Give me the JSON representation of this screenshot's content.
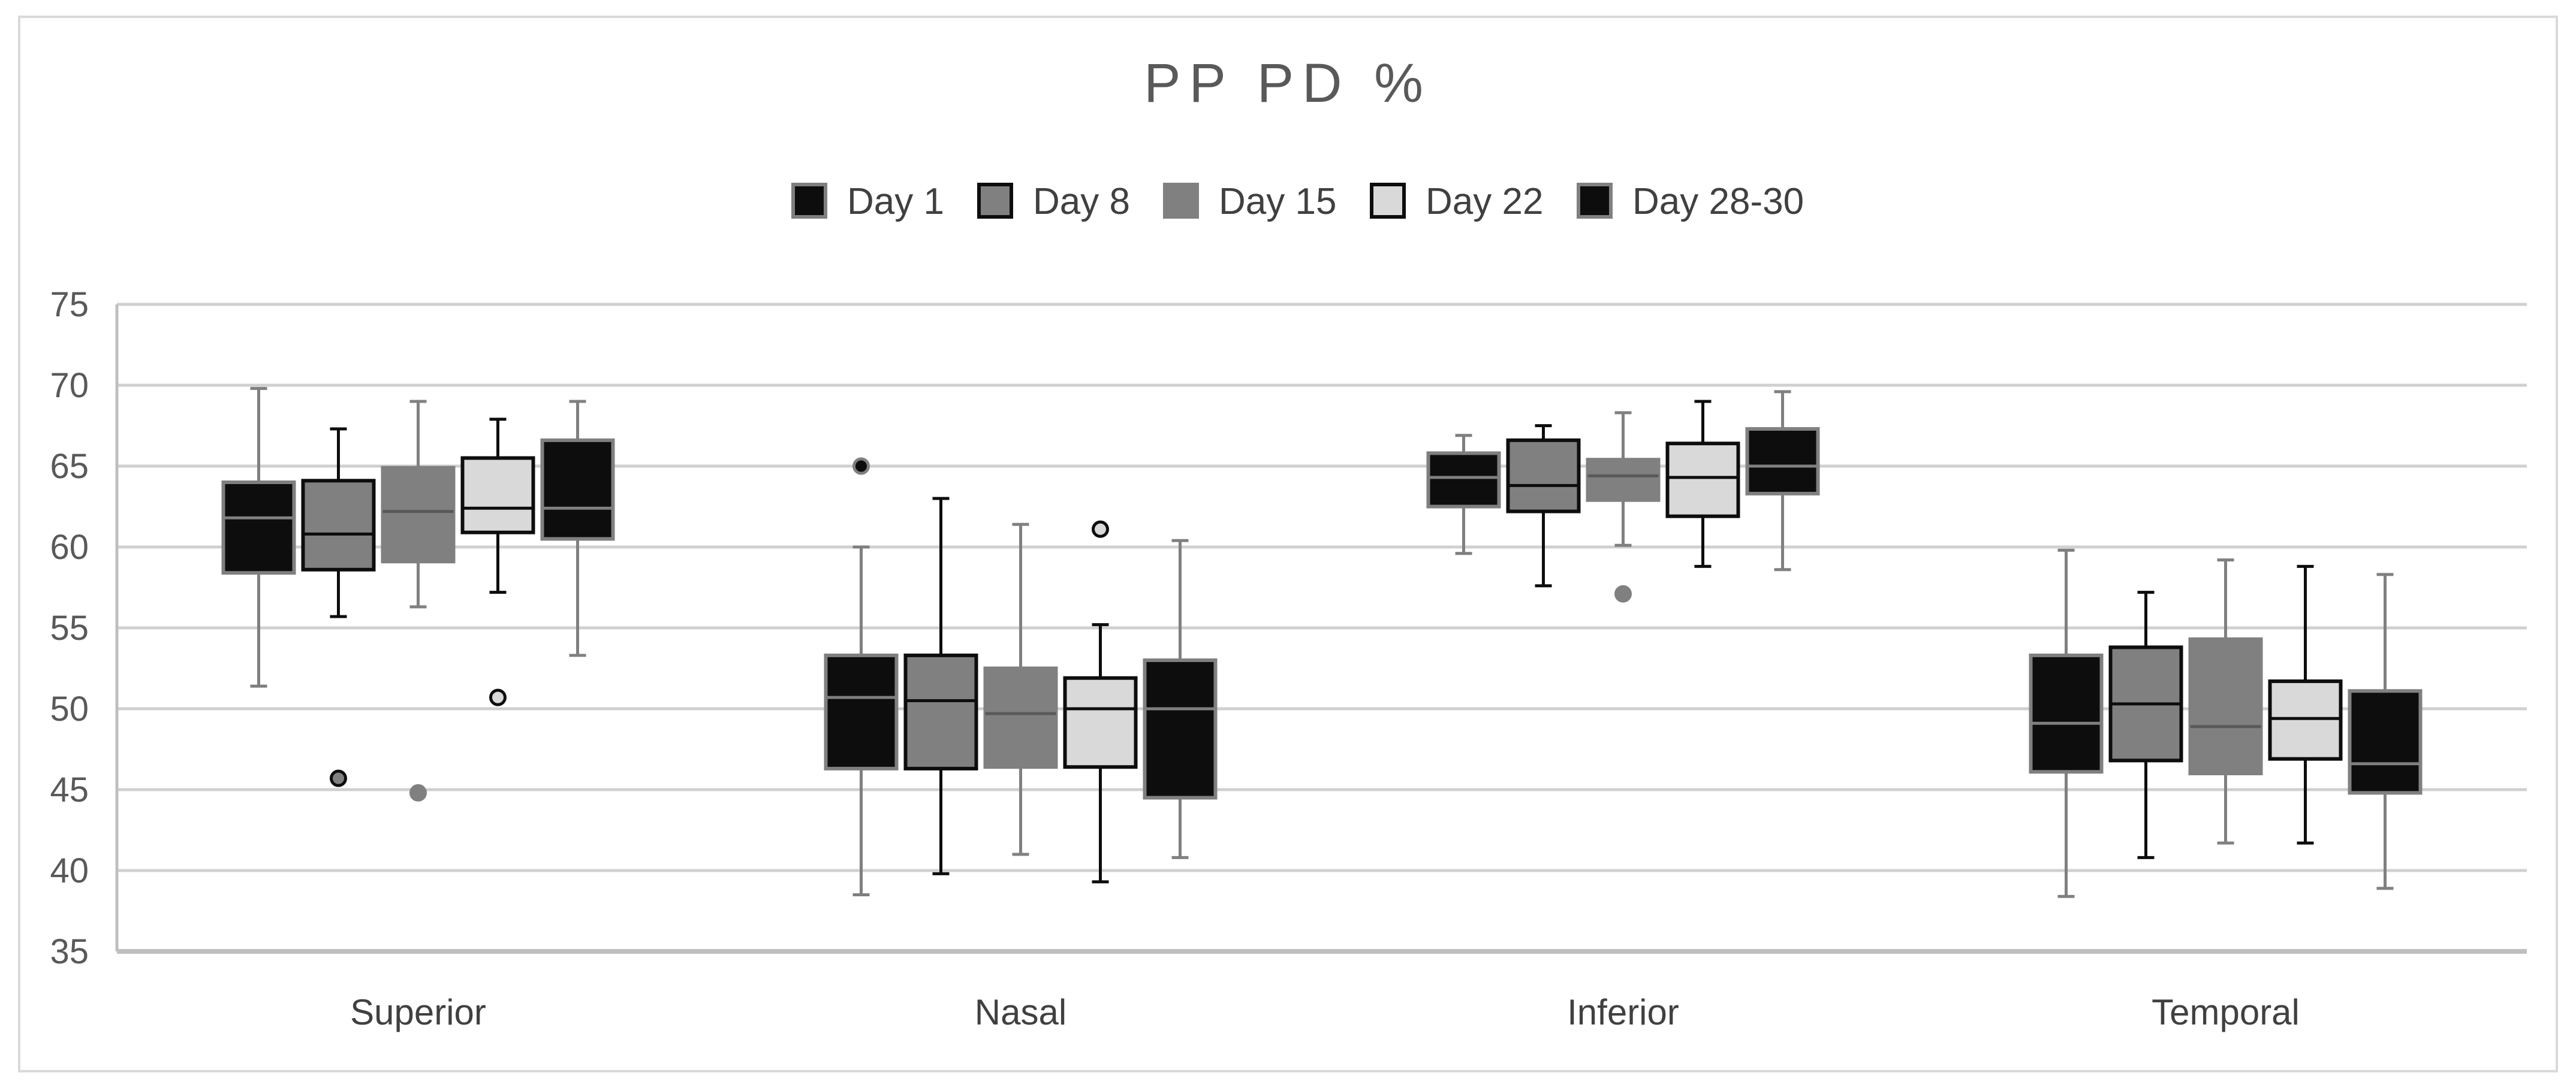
{
  "chart_data": {
    "type": "box",
    "title": "PP PD %",
    "xlabel": "",
    "ylabel": "",
    "ylim": [
      35,
      75
    ],
    "yticks": [
      35,
      40,
      45,
      50,
      55,
      60,
      65,
      70,
      75
    ],
    "grid": true,
    "legend_position": "top-center",
    "categories": [
      "Superior",
      "Nasal",
      "Inferior",
      "Temporal"
    ],
    "series": [
      {
        "name": "Day 1",
        "fill": "#0d0d0d",
        "stroke": "#7f7f7f",
        "median_color": "#7f7f7f",
        "boxes": [
          {
            "min": 51.4,
            "q1": 58.4,
            "median": 61.8,
            "q3": 64.0,
            "max": 69.8,
            "outliers": []
          },
          {
            "min": 38.5,
            "q1": 46.3,
            "median": 50.7,
            "q3": 53.3,
            "max": 60.0,
            "outliers": [
              65.0
            ]
          },
          {
            "min": 59.6,
            "q1": 62.5,
            "median": 64.3,
            "q3": 65.8,
            "max": 66.9,
            "outliers": []
          },
          {
            "min": 38.4,
            "q1": 46.1,
            "median": 49.1,
            "q3": 53.3,
            "max": 59.8,
            "outliers": []
          }
        ]
      },
      {
        "name": "Day 8",
        "fill": "#808080",
        "stroke": "#0d0d0d",
        "median_color": "#0d0d0d",
        "boxes": [
          {
            "min": 55.7,
            "q1": 58.6,
            "median": 60.8,
            "q3": 64.1,
            "max": 67.3,
            "outliers": [
              45.7
            ]
          },
          {
            "min": 39.8,
            "q1": 46.3,
            "median": 50.5,
            "q3": 53.3,
            "max": 63.0,
            "outliers": []
          },
          {
            "min": 57.6,
            "q1": 62.2,
            "median": 63.8,
            "q3": 66.6,
            "max": 67.5,
            "outliers": []
          },
          {
            "min": 40.8,
            "q1": 46.8,
            "median": 50.3,
            "q3": 53.8,
            "max": 57.2,
            "outliers": []
          }
        ]
      },
      {
        "name": "Day 15",
        "fill": "#808080",
        "stroke": "#808080",
        "median_color": "#595959",
        "boxes": [
          {
            "min": 56.3,
            "q1": 59.1,
            "median": 62.2,
            "q3": 64.9,
            "max": 69.0,
            "outliers": [
              44.8
            ]
          },
          {
            "min": 41.0,
            "q1": 46.4,
            "median": 49.7,
            "q3": 52.5,
            "max": 61.4,
            "outliers": []
          },
          {
            "min": 60.1,
            "q1": 62.9,
            "median": 64.4,
            "q3": 65.4,
            "max": 68.3,
            "outliers": [
              57.1
            ]
          },
          {
            "min": 41.7,
            "q1": 46.0,
            "median": 48.9,
            "q3": 54.3,
            "max": 59.2,
            "outliers": []
          }
        ]
      },
      {
        "name": "Day 22",
        "fill": "#d9d9d9",
        "stroke": "#0d0d0d",
        "median_color": "#0d0d0d",
        "boxes": [
          {
            "min": 57.2,
            "q1": 60.9,
            "median": 62.4,
            "q3": 65.5,
            "max": 67.9,
            "outliers": [
              50.7
            ]
          },
          {
            "min": 39.3,
            "q1": 46.4,
            "median": 50.0,
            "q3": 51.9,
            "max": 55.2,
            "outliers": [
              61.1
            ]
          },
          {
            "min": 58.8,
            "q1": 61.9,
            "median": 64.3,
            "q3": 66.4,
            "max": 69.0,
            "outliers": []
          },
          {
            "min": 41.7,
            "q1": 46.9,
            "median": 49.4,
            "q3": 51.7,
            "max": 58.8,
            "outliers": []
          }
        ]
      },
      {
        "name": "Day 28-30",
        "fill": "#0d0d0d",
        "stroke": "#808080",
        "median_color": "#808080",
        "boxes": [
          {
            "min": 53.3,
            "q1": 60.5,
            "median": 62.4,
            "q3": 66.6,
            "max": 69.0,
            "outliers": []
          },
          {
            "min": 40.8,
            "q1": 44.5,
            "median": 50.0,
            "q3": 53.0,
            "max": 60.4,
            "outliers": []
          },
          {
            "min": 58.6,
            "q1": 63.3,
            "median": 65.0,
            "q3": 67.3,
            "max": 69.6,
            "outliers": []
          },
          {
            "min": 38.9,
            "q1": 44.8,
            "median": 46.6,
            "q3": 51.1,
            "max": 58.3,
            "outliers": []
          }
        ]
      }
    ]
  }
}
